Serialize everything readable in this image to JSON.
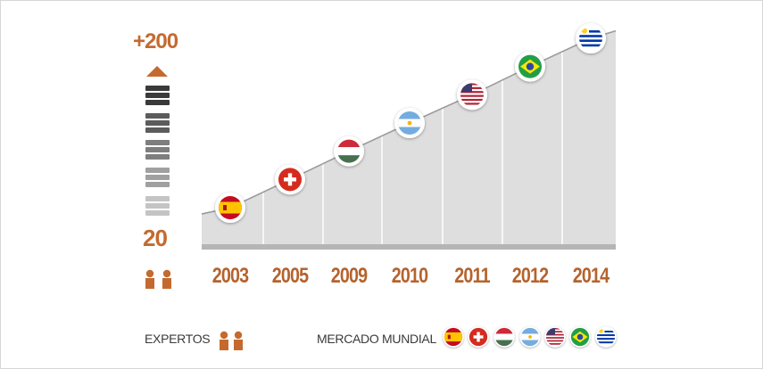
{
  "scale": {
    "max_label": "+200",
    "min_label": "20"
  },
  "legend": {
    "experts_label": "EXPERTOS",
    "markets_label": "MERCADO MUNDIAL"
  },
  "colors": {
    "accent": "#c46a2f",
    "area": "#dedede",
    "baseline": "#b5b5b5",
    "stack_dark": "#3a3a3a",
    "stack_light": "#c2c2c2"
  },
  "chart_data": {
    "type": "area",
    "x": [
      "2003",
      "2005",
      "2009",
      "2010",
      "2011",
      "2012",
      "2014"
    ],
    "values": [
      1,
      2,
      3,
      4,
      5,
      6,
      7
    ],
    "ylim": [
      20,
      200
    ],
    "point_icons": [
      "spain-flag",
      "switzerland-flag",
      "hungary-flag",
      "argentina-flag",
      "usa-flag",
      "brazil-flag",
      "uruguay-flag"
    ],
    "grid": false
  }
}
